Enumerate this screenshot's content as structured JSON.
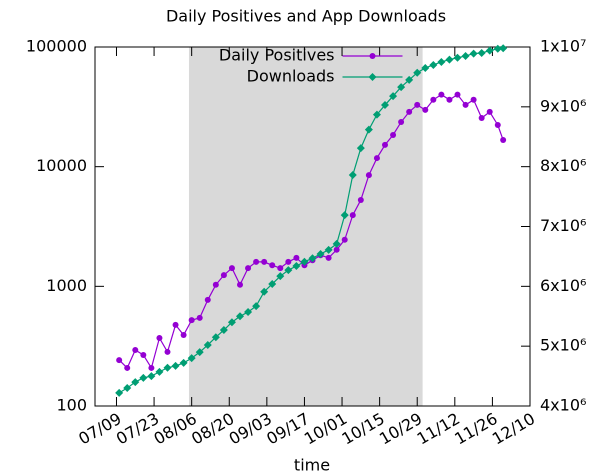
{
  "chart_data": {
    "type": "line",
    "title": "Daily Positives and App Downloads",
    "x_label": "time",
    "x": [
      "07/10",
      "07/13",
      "07/16",
      "07/19",
      "07/22",
      "07/25",
      "07/28",
      "07/31",
      "08/03",
      "08/06",
      "08/09",
      "08/12",
      "08/15",
      "08/18",
      "08/21",
      "08/24",
      "08/27",
      "08/30",
      "09/02",
      "09/05",
      "09/08",
      "09/11",
      "09/14",
      "09/17",
      "09/20",
      "09/23",
      "09/26",
      "09/29",
      "10/02",
      "10/05",
      "10/08",
      "10/11",
      "10/14",
      "10/17",
      "10/20",
      "10/23",
      "10/26",
      "10/29",
      "11/01",
      "11/04",
      "11/07",
      "11/10",
      "11/13",
      "11/16",
      "11/19",
      "11/22",
      "11/25",
      "11/28",
      "11/30"
    ],
    "series": [
      {
        "name": "Daily Positives",
        "color": "#9400d3",
        "marker": "circle",
        "axis": "y",
        "values": [
          242,
          208,
          294,
          267,
          208,
          370,
          283,
          476,
          392,
          522,
          545,
          770,
          1030,
          1240,
          1420,
          1030,
          1420,
          1600,
          1600,
          1500,
          1420,
          1600,
          1730,
          1500,
          1650,
          1820,
          1730,
          2020,
          2450,
          3940,
          5270,
          8500,
          11800,
          15200,
          18400,
          23600,
          28700,
          32800,
          29800,
          36200,
          40000,
          36200,
          40000,
          32800,
          36200,
          25500,
          28700,
          22300,
          16700
        ]
      },
      {
        "name": "Downloads",
        "color": "#009e73",
        "marker": "diamond",
        "axis": "y2",
        "values": [
          4220000,
          4300000,
          4400000,
          4470000,
          4500000,
          4570000,
          4640000,
          4670000,
          4720000,
          4800000,
          4900000,
          5020000,
          5150000,
          5270000,
          5400000,
          5500000,
          5570000,
          5670000,
          5910000,
          6040000,
          6170000,
          6270000,
          6340000,
          6410000,
          6470000,
          6540000,
          6610000,
          6710000,
          7190000,
          7860000,
          8310000,
          8620000,
          8870000,
          9030000,
          9180000,
          9330000,
          9450000,
          9570000,
          9650000,
          9700000,
          9750000,
          9790000,
          9820000,
          9850000,
          9890000,
          9900000,
          9940000,
          9970000,
          9980000
        ]
      }
    ],
    "xlim": [
      "07/01",
      "12/10"
    ],
    "xticks": [
      "07/09",
      "07/23",
      "08/06",
      "08/20",
      "09/03",
      "09/17",
      "10/01",
      "10/15",
      "10/29",
      "11/12",
      "11/26",
      "12/10"
    ],
    "ylim": [
      100,
      100000
    ],
    "log_y": true,
    "yticks": [
      100,
      1000,
      10000,
      100000
    ],
    "y2lim": [
      4000000,
      10000000
    ],
    "y2ticks": [
      {
        "value": 4000000,
        "label": "4x10⁶"
      },
      {
        "value": 5000000,
        "label": "5x10⁶"
      },
      {
        "value": 6000000,
        "label": "6x10⁶"
      },
      {
        "value": 7000000,
        "label": "7x10⁶"
      },
      {
        "value": 8000000,
        "label": "8x10⁶"
      },
      {
        "value": 9000000,
        "label": "9x10⁶"
      },
      {
        "value": 10000000,
        "label": "1x10⁷"
      }
    ],
    "shaded_region": [
      "08/05",
      "10/31"
    ],
    "shade_color": "#d9d9d9",
    "legend": "top-center"
  }
}
